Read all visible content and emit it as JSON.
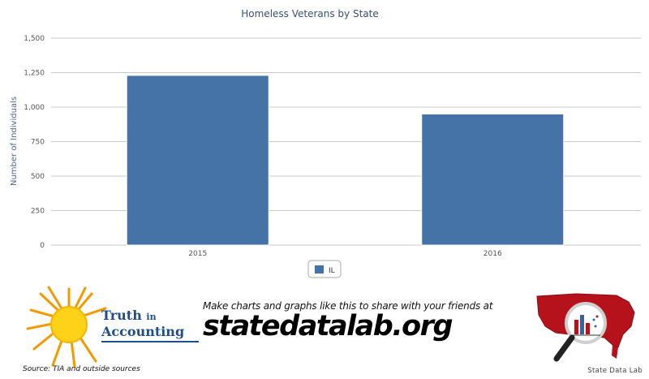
{
  "chart_data": {
    "type": "bar",
    "title": "Homeless Veterans by State",
    "ylabel": "Number of Individuals",
    "xlabel": "",
    "categories": [
      "2015",
      "2016"
    ],
    "series": [
      {
        "name": "IL",
        "values": [
          1230,
          950
        ],
        "color": "#4573a7"
      }
    ],
    "ylim": [
      0,
      1500
    ],
    "yticks": [
      0,
      250,
      500,
      750,
      1000,
      1250,
      1500
    ],
    "ytick_labels": [
      "0",
      "250",
      "500",
      "750",
      "1,000",
      "1,250",
      "1,500"
    ],
    "grid": true,
    "legend_position": "bottom-center"
  },
  "footer": {
    "tia_line1": "Truth",
    "tia_line1_suffix": "in",
    "tia_line2": "Accounting",
    "source_text": "Source: TIA and outside sources",
    "promo_text": "Make charts and graphs like this to share with your friends at",
    "promo_url": "statedatalab.org",
    "sdl_caption": "State Data Lab"
  },
  "icons": {
    "tia_logo": "sun-icon",
    "sdl_logo": "us-map-magnifier-icon"
  },
  "colors": {
    "bar": "#4573a7",
    "sun": "#f7b500",
    "map": "#b5121b",
    "tia_text": "#1f4e8c"
  }
}
